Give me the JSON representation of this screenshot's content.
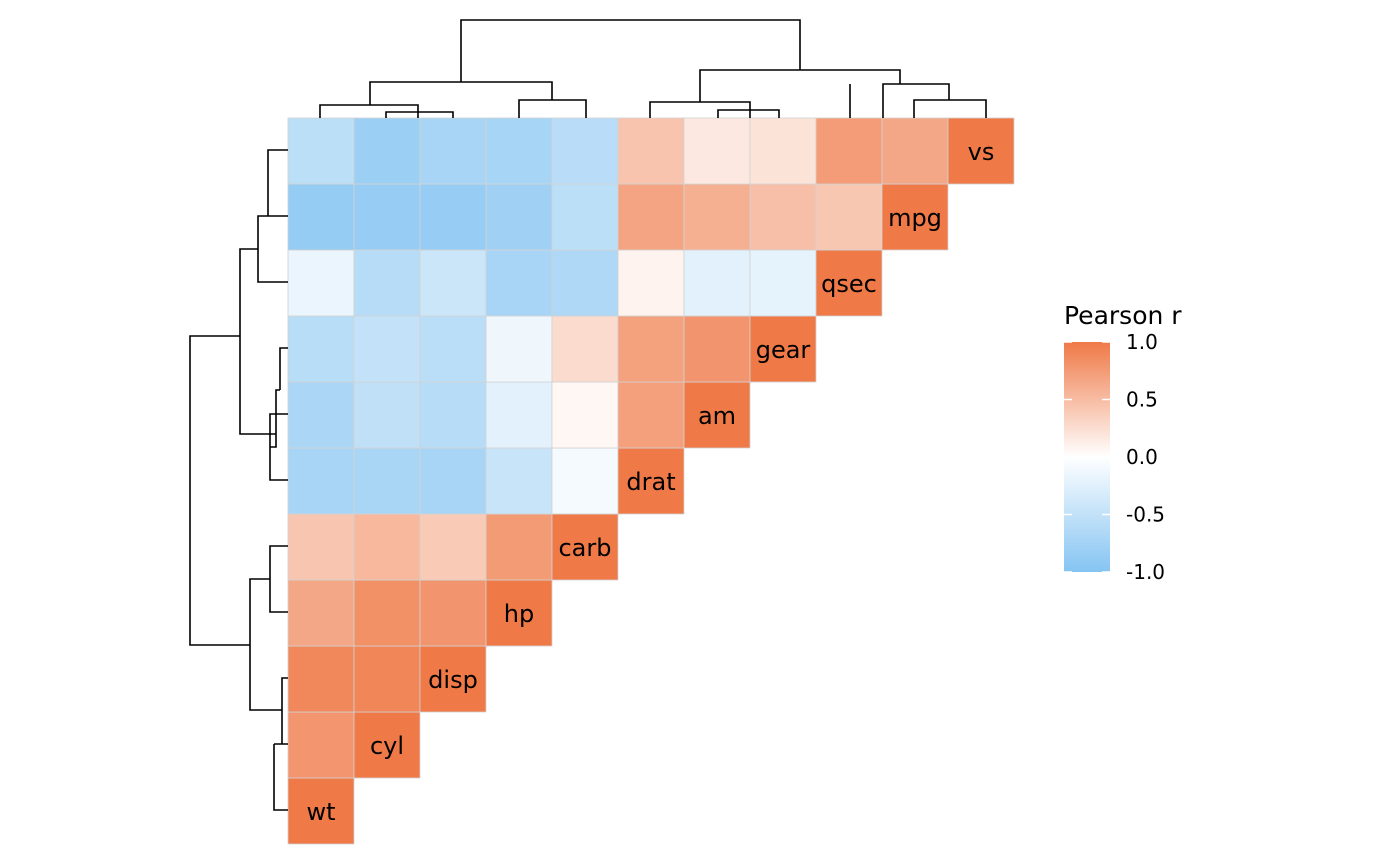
{
  "chart_data": {
    "type": "heatmap",
    "variables": [
      "wt",
      "cyl",
      "disp",
      "hp",
      "carb",
      "drat",
      "am",
      "gear",
      "qsec",
      "mpg",
      "vs"
    ],
    "matrix": [
      [
        1.0,
        0.78,
        0.89,
        0.66,
        0.43,
        -0.71,
        -0.69,
        -0.58,
        -0.17,
        -0.87,
        -0.55
      ],
      [
        0.78,
        1.0,
        0.9,
        0.83,
        0.53,
        -0.7,
        -0.52,
        -0.49,
        -0.59,
        -0.85,
        -0.81
      ],
      [
        0.89,
        0.9,
        1.0,
        0.79,
        0.39,
        -0.71,
        -0.59,
        -0.56,
        -0.43,
        -0.85,
        -0.71
      ],
      [
        0.66,
        0.83,
        0.79,
        1.0,
        0.75,
        -0.45,
        -0.24,
        -0.13,
        -0.71,
        -0.78,
        -0.72
      ],
      [
        0.43,
        0.53,
        0.39,
        0.75,
        1.0,
        -0.09,
        0.06,
        0.27,
        -0.66,
        -0.55,
        -0.57
      ],
      [
        -0.71,
        -0.7,
        -0.71,
        -0.45,
        -0.09,
        1.0,
        0.71,
        0.7,
        0.09,
        0.68,
        0.44
      ],
      [
        -0.69,
        -0.52,
        -0.59,
        -0.24,
        0.06,
        0.71,
        1.0,
        0.79,
        -0.23,
        0.6,
        0.17
      ],
      [
        -0.58,
        -0.49,
        -0.56,
        -0.13,
        0.27,
        0.7,
        0.79,
        1.0,
        -0.21,
        0.48,
        0.21
      ],
      [
        -0.17,
        -0.59,
        -0.43,
        -0.71,
        -0.66,
        0.09,
        -0.23,
        -0.21,
        1.0,
        0.42,
        0.74
      ],
      [
        -0.87,
        -0.85,
        -0.85,
        -0.78,
        -0.55,
        0.68,
        0.6,
        0.48,
        0.42,
        1.0,
        0.66
      ],
      [
        -0.55,
        -0.81,
        -0.71,
        -0.72,
        -0.57,
        0.44,
        0.17,
        0.21,
        0.74,
        0.66,
        1.0
      ]
    ],
    "color_scale": {
      "low": "#85c4f2",
      "mid": "#ffffff",
      "high": "#ef7947",
      "range": [
        -1,
        1
      ]
    },
    "legend": {
      "title": "Pearson r",
      "ticks": [
        "1.0",
        "0.5",
        "0.0",
        "-0.5",
        "-1.0"
      ],
      "tick_values": [
        1,
        0.5,
        0,
        -0.5,
        -1
      ],
      "placement": "right"
    },
    "dendrogram": {
      "clusters": [
        [
          "wt",
          "cyl",
          "disp",
          "hp",
          "carb"
        ],
        [
          "drat",
          "am",
          "gear",
          "qsec",
          "mpg",
          "vs"
        ]
      ]
    },
    "triangle": "upper",
    "diagonal_labels": true
  }
}
